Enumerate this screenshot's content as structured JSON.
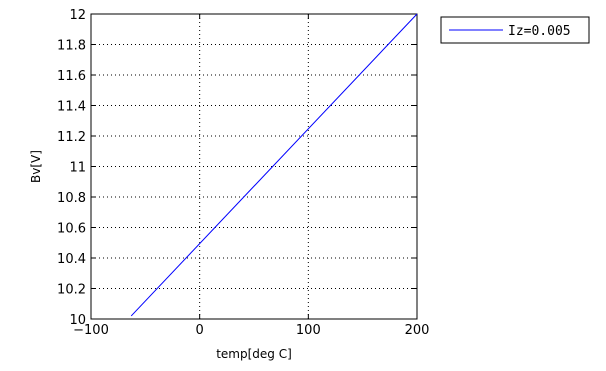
{
  "chart_data": {
    "type": "line",
    "title": "",
    "xlabel": "temp[deg C]",
    "ylabel": "Bv[V]",
    "xlim": [
      -100,
      200
    ],
    "ylim": [
      10,
      12
    ],
    "x_ticks": [
      {
        "value": -100,
        "label": "−100"
      },
      {
        "value": 0,
        "label": "0"
      },
      {
        "value": 100,
        "label": "100"
      },
      {
        "value": 200,
        "label": "200"
      }
    ],
    "y_ticks": [
      {
        "value": 10,
        "label": "10"
      },
      {
        "value": 10.2,
        "label": "10.2"
      },
      {
        "value": 10.4,
        "label": "10.4"
      },
      {
        "value": 10.6,
        "label": "10.6"
      },
      {
        "value": 10.8,
        "label": "10.8"
      },
      {
        "value": 11,
        "label": "11"
      },
      {
        "value": 11.2,
        "label": "11.2"
      },
      {
        "value": 11.4,
        "label": "11.4"
      },
      {
        "value": 11.6,
        "label": "11.6"
      },
      {
        "value": 11.8,
        "label": "11.8"
      },
      {
        "value": 12,
        "label": "12"
      }
    ],
    "grid": true,
    "legend_position": "outside-top-right",
    "series": [
      {
        "name": "Iz=0.005",
        "color": "#0000ff",
        "x": [
          -63,
          200
        ],
        "y": [
          10.02,
          12.0
        ]
      }
    ]
  }
}
